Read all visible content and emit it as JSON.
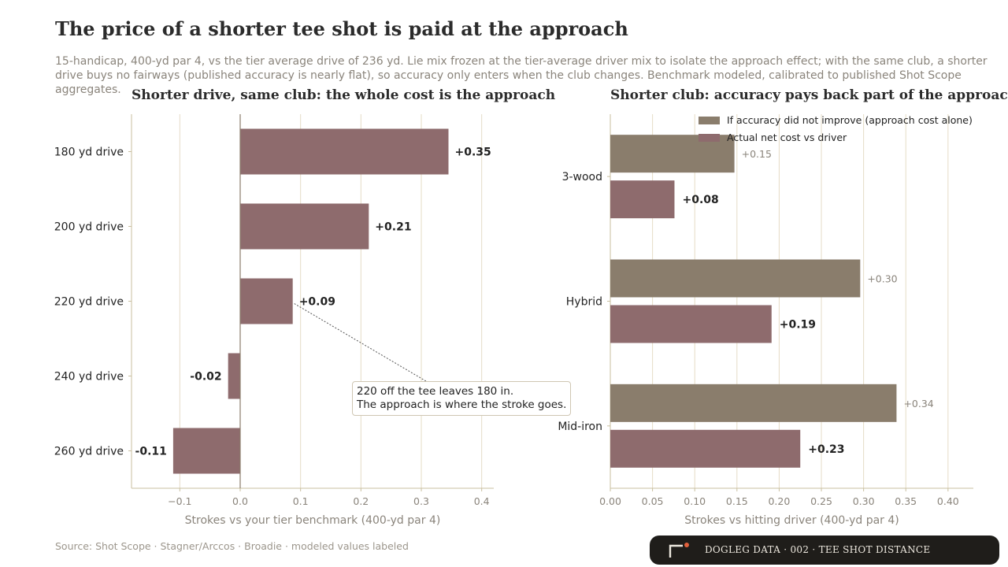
{
  "title": "The price of a shorter tee shot is paid at the approach",
  "subtitle": "15-handicap, 400-yd par 4, vs the tier average drive of 236 yd. Lie mix frozen at the tier-average driver mix to isolate the approach effect; with the same club, a shorter drive buys no fairways (published accuracy is nearly flat), so accuracy only enters when the club changes. Benchmark modeled, calibrated to published Shot Scope aggregates.",
  "colors": {
    "mauve": "#8e6b6d",
    "taupe": "#8a7d6c",
    "grid": "#e5dcc6",
    "axis": "#c9bf9f",
    "zero_line": "#8a7d6c",
    "tick_text": "#8a847b",
    "dark_text": "#222222"
  },
  "chart_data": [
    {
      "type": "bar",
      "orientation": "horizontal",
      "title": "Shorter drive, same club: the whole cost is the approach",
      "xlabel": "Strokes vs your tier benchmark (400-yd par 4)",
      "categories": [
        "180 yd drive",
        "200 yd drive",
        "220 yd drive",
        "240 yd drive",
        "260 yd drive"
      ],
      "values": [
        0.345,
        0.213,
        0.087,
        -0.02,
        -0.111
      ],
      "value_labels": [
        "+0.35",
        "+0.21",
        "+0.09",
        "-0.02",
        "-0.11"
      ],
      "xlim": [
        -0.18,
        0.42
      ],
      "xticks": [
        -0.1,
        0.0,
        0.1,
        0.2,
        0.3,
        0.4
      ],
      "xtick_labels": [
        "−0.1",
        "0.0",
        "0.1",
        "0.2",
        "0.3",
        "0.4"
      ],
      "grid": true,
      "annotation": {
        "category": "220 yd drive",
        "lines": [
          "220 off the tee leaves 180 in.",
          "The approach is where the stroke goes."
        ]
      }
    },
    {
      "type": "bar",
      "orientation": "horizontal",
      "title": "Shorter club: accuracy pays back part of the approach cost",
      "xlabel": "Strokes vs hitting driver (400-yd par 4)",
      "categories": [
        "3-wood",
        "Hybrid",
        "Mid-iron"
      ],
      "series": [
        {
          "name": "If accuracy did not improve (approach cost alone)",
          "values": [
            0.147,
            0.296,
            0.339
          ],
          "value_labels": [
            "+0.15",
            "+0.30",
            "+0.34"
          ]
        },
        {
          "name": "Actual net cost vs driver",
          "values": [
            0.076,
            0.191,
            0.225
          ],
          "value_labels": [
            "+0.08",
            "+0.19",
            "+0.23"
          ]
        }
      ],
      "xlim": [
        0.0,
        0.43
      ],
      "xticks": [
        0.0,
        0.05,
        0.1,
        0.15,
        0.2,
        0.25,
        0.3,
        0.35,
        0.4
      ],
      "xtick_labels": [
        "0.00",
        "0.05",
        "0.10",
        "0.15",
        "0.20",
        "0.25",
        "0.30",
        "0.35",
        "0.40"
      ],
      "grid": true,
      "legend_position": "top-right"
    }
  ],
  "source": "Source: Shot Scope · Stagner/Arccos · Broadie · modeled values labeled",
  "brand": {
    "text": "DOGLEG DATA · 002 · TEE SHOT DISTANCE",
    "accent": "#e0603c"
  }
}
